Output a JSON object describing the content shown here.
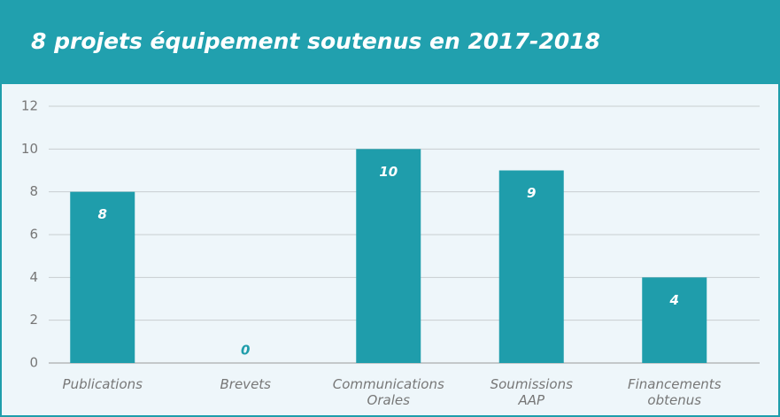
{
  "chart_data": {
    "type": "bar",
    "title": "8 projets équipement soutenus en 2017-2018",
    "categories": [
      "Publications",
      "Brevets",
      "Communications Orales",
      "Soumissions AAP",
      "Financements obtenus"
    ],
    "values": [
      8,
      0,
      10,
      9,
      4
    ],
    "color": "#1f9dab",
    "ylim": [
      0,
      12
    ],
    "yticks": [
      0,
      2,
      4,
      6,
      8,
      10,
      12
    ],
    "grid": true
  }
}
